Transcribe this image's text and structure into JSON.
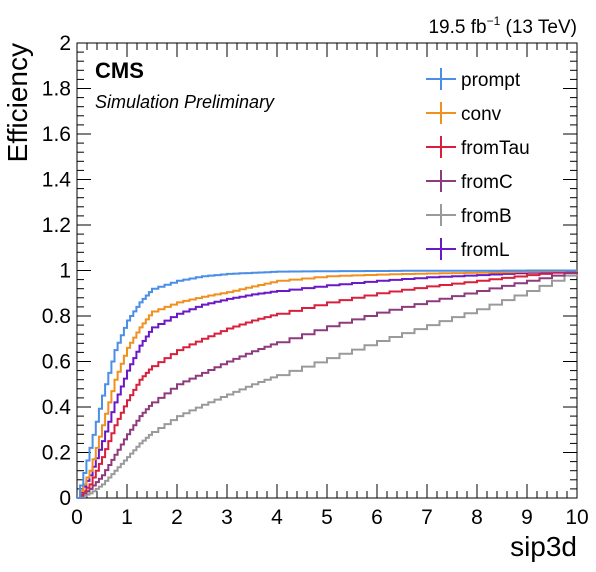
{
  "header": {
    "lumi_value": "19.5 fb",
    "lumi_exp": "−1",
    "energy": " (13 TeV)",
    "experiment": "CMS",
    "status": "Simulation Preliminary"
  },
  "chart_data": {
    "type": "line",
    "xlabel": "sip3d",
    "ylabel": "Efficiency",
    "xlim": [
      0,
      10
    ],
    "ylim": [
      0,
      2
    ],
    "x_ticks": [
      "0",
      "1",
      "2",
      "3",
      "4",
      "5",
      "6",
      "7",
      "8",
      "9",
      "10"
    ],
    "y_ticks": [
      "0",
      "0.2",
      "0.4",
      "0.6",
      "0.8",
      "1",
      "1.2",
      "1.4",
      "1.6",
      "1.8",
      "2"
    ],
    "grid": false,
    "legend_position": "top-right",
    "x": [
      0,
      0.25,
      0.5,
      0.75,
      1,
      1.25,
      1.5,
      2,
      2.5,
      3,
      3.5,
      4,
      5,
      6,
      7,
      8,
      9,
      10
    ],
    "series": [
      {
        "name": "prompt",
        "color": "#4a8ee8",
        "values": [
          0,
          0.22,
          0.45,
          0.65,
          0.78,
          0.86,
          0.92,
          0.955,
          0.975,
          0.985,
          0.99,
          0.995,
          0.997,
          0.998,
          0.999,
          0.999,
          1.0,
          1.0
        ]
      },
      {
        "name": "conv",
        "color": "#f0901e",
        "values": [
          0,
          0.12,
          0.32,
          0.52,
          0.66,
          0.75,
          0.82,
          0.86,
          0.885,
          0.905,
          0.93,
          0.955,
          0.975,
          0.982,
          0.987,
          0.99,
          0.995,
          1.0
        ]
      },
      {
        "name": "fromTau",
        "color": "#d8203c",
        "values": [
          0,
          0.06,
          0.18,
          0.32,
          0.43,
          0.52,
          0.58,
          0.65,
          0.7,
          0.745,
          0.78,
          0.81,
          0.86,
          0.9,
          0.93,
          0.955,
          0.98,
          1.0
        ]
      },
      {
        "name": "fromC",
        "color": "#8e3b7e",
        "values": [
          0,
          0.04,
          0.1,
          0.19,
          0.28,
          0.36,
          0.42,
          0.5,
          0.55,
          0.6,
          0.645,
          0.685,
          0.755,
          0.815,
          0.865,
          0.91,
          0.955,
          1.0
        ]
      },
      {
        "name": "fromB",
        "color": "#9a9a9a",
        "values": [
          0,
          0.02,
          0.06,
          0.12,
          0.18,
          0.24,
          0.29,
          0.36,
          0.41,
          0.455,
          0.5,
          0.54,
          0.615,
          0.69,
          0.76,
          0.83,
          0.91,
          1.0
        ]
      },
      {
        "name": "fromL",
        "color": "#6a18c8",
        "values": [
          0,
          0.1,
          0.25,
          0.42,
          0.56,
          0.67,
          0.75,
          0.81,
          0.85,
          0.875,
          0.895,
          0.91,
          0.935,
          0.955,
          0.97,
          0.98,
          0.99,
          1.0
        ]
      }
    ]
  }
}
